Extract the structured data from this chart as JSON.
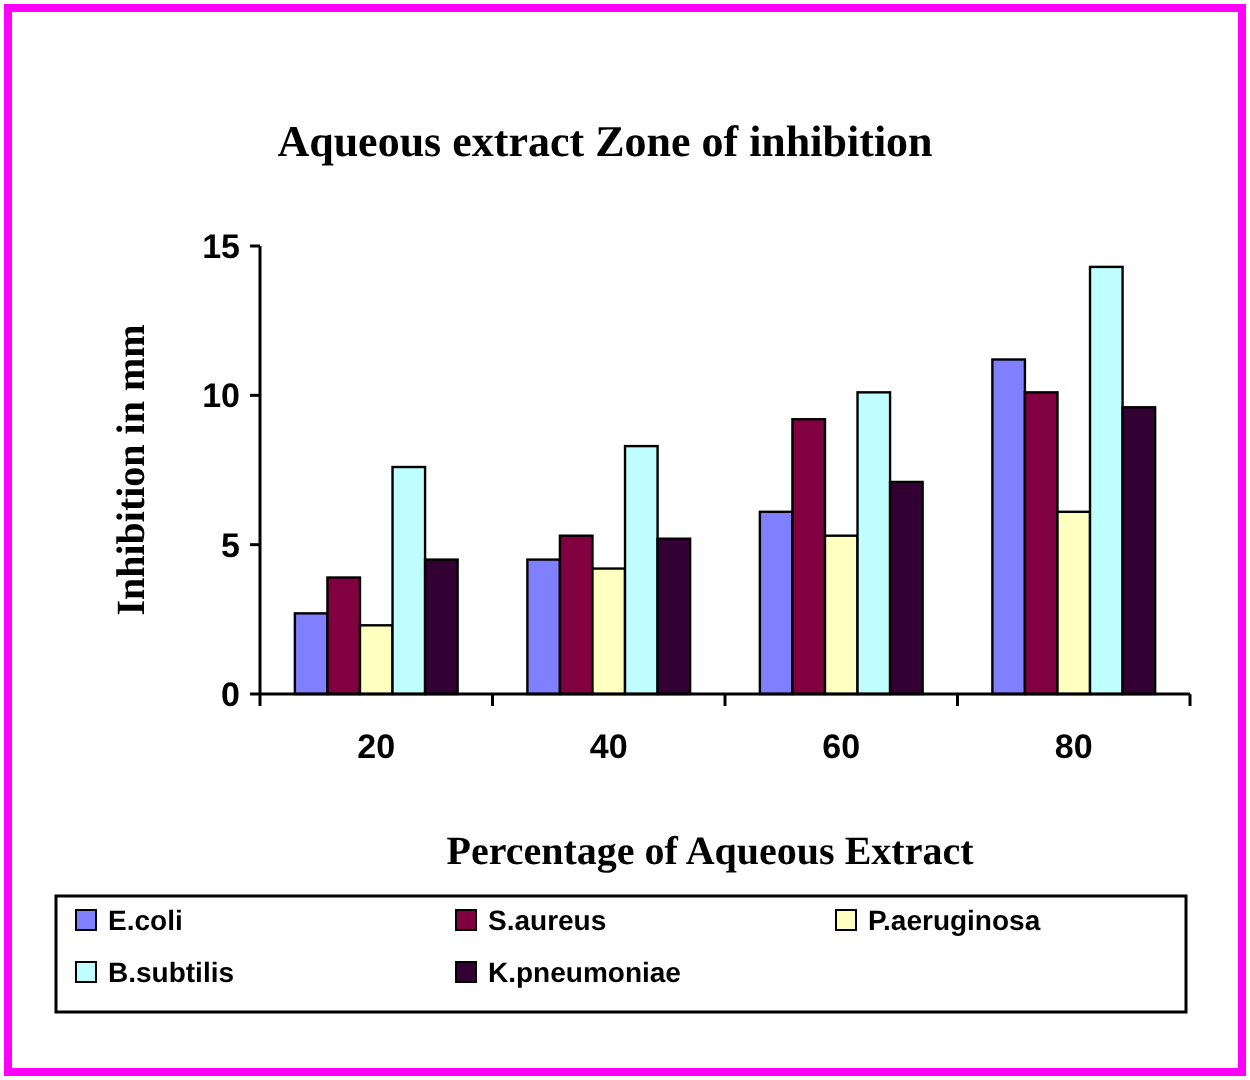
{
  "chart_data": {
    "type": "bar",
    "title": "Aqueous extract Zone of inhibition",
    "xlabel": "Percentage of Aqueous Extract",
    "ylabel": "Inhibition in mm",
    "categories": [
      "20",
      "40",
      "60",
      "80"
    ],
    "series": [
      {
        "name": "E.coli",
        "color": "#8080ff",
        "values": [
          2.7,
          4.5,
          6.1,
          11.2
        ]
      },
      {
        "name": "S.aureus",
        "color": "#800040",
        "values": [
          3.9,
          5.3,
          9.2,
          10.1
        ]
      },
      {
        "name": "P.aeruginosa",
        "color": "#ffffc0",
        "values": [
          2.3,
          4.2,
          5.3,
          6.1
        ]
      },
      {
        "name": "B.subtilis",
        "color": "#c0ffff",
        "values": [
          7.6,
          8.3,
          10.1,
          14.3
        ]
      },
      {
        "name": "K.pneumoniae",
        "color": "#330033",
        "values": [
          4.5,
          5.2,
          7.1,
          9.6
        ]
      }
    ],
    "ylim": [
      0,
      15
    ],
    "yticks": [
      0,
      5,
      10,
      15
    ],
    "grid": false,
    "legend": "bottom"
  }
}
